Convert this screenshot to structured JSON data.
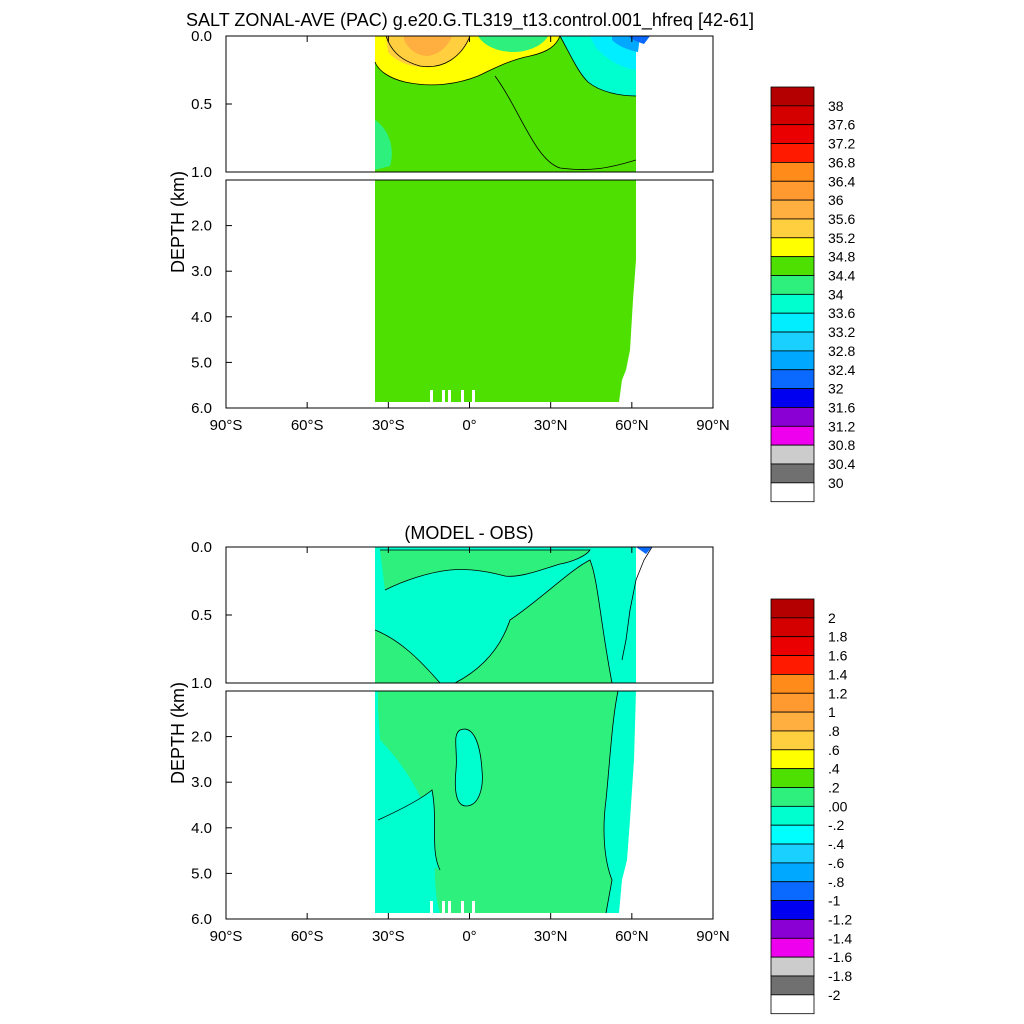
{
  "title": "SALT ZONAL-AVE (PAC) g.e20.G.TL319_t13.control.001_hfreq [42-61]",
  "chart_data": [
    {
      "type": "heatmap",
      "name": "model-salinity",
      "title": "SALT ZONAL-AVE (PAC) g.e20.G.TL319_t13.control.001_hfreq [42-61]",
      "ylabel": "DEPTH (km)",
      "x_range": [
        -90,
        90
      ],
      "x_ticks": [
        -90,
        -60,
        -30,
        0,
        30,
        60,
        90
      ],
      "x_tick_labels": [
        "90°S",
        "60°S",
        "30°S",
        "0°",
        "30°N",
        "60°N",
        "90°N"
      ],
      "upper_depth_range": [
        0.0,
        1.0
      ],
      "lower_depth_range": [
        1.0,
        6.0
      ],
      "upper_tick_values": [
        0.0,
        0.5,
        1.0
      ],
      "upper_tick_labels": [
        "0.0",
        "0.5",
        "1.0"
      ],
      "lower_tick_values": [
        2.0,
        3.0,
        4.0,
        5.0,
        6.0
      ],
      "lower_tick_labels": [
        "2.0",
        "3.0",
        "4.0",
        "5.0",
        "6.0"
      ],
      "colorbar_labels": [
        "38",
        "37.6",
        "37.2",
        "36.8",
        "36.4",
        "36",
        "35.6",
        "35.2",
        "34.8",
        "34.4",
        "34",
        "33.6",
        "33.2",
        "32.8",
        "32.4",
        "32",
        "31.6",
        "31.2",
        "30.8",
        "30.4",
        "30"
      ],
      "colorbar_colors": [
        "#b40000",
        "#d40000",
        "#ea0000",
        "#ff1a00",
        "#ff8c1a",
        "#ff9a30",
        "#ffae40",
        "#ffcf40",
        "#ffff00",
        "#4de000",
        "#2ef07c",
        "#00ffcf",
        "#00eeff",
        "#1ad0ff",
        "#00a8ff",
        "#0a6aff",
        "#0000f0",
        "#8a00d4",
        "#ee00ee",
        "#cccccc",
        "#707070",
        "#ffffff"
      ]
    },
    {
      "type": "heatmap",
      "name": "model-minus-obs",
      "title": "(MODEL - OBS)",
      "ylabel": "DEPTH (km)",
      "x_range": [
        -90,
        90
      ],
      "x_ticks": [
        -90,
        -60,
        -30,
        0,
        30,
        60,
        90
      ],
      "x_tick_labels": [
        "90°S",
        "60°S",
        "30°S",
        "0°",
        "30°N",
        "60°N",
        "90°N"
      ],
      "upper_depth_range": [
        0.0,
        1.0
      ],
      "lower_depth_range": [
        1.0,
        6.0
      ],
      "upper_tick_values": [
        0.0,
        0.5,
        1.0
      ],
      "upper_tick_labels": [
        "0.0",
        "0.5",
        "1.0"
      ],
      "lower_tick_values": [
        2.0,
        3.0,
        4.0,
        5.0,
        6.0
      ],
      "lower_tick_labels": [
        "2.0",
        "3.0",
        "4.0",
        "5.0",
        "6.0"
      ],
      "colorbar_labels": [
        "2",
        "1.8",
        "1.6",
        "1.4",
        "1.2",
        "1",
        ".8",
        ".6",
        ".4",
        ".2",
        ".00",
        "-.2",
        "-.4",
        "-.6",
        "-.8",
        "-1",
        "-1.2",
        "-1.4",
        "-1.6",
        "-1.8",
        "-2"
      ],
      "colorbar_colors": [
        "#b40000",
        "#d40000",
        "#ea0000",
        "#ff1a00",
        "#ff8c1a",
        "#ff9a30",
        "#ffae40",
        "#ffcf40",
        "#ffff00",
        "#4de000",
        "#2ef07c",
        "#00ffcf",
        "#00ffff",
        "#1ad0ff",
        "#00a8ff",
        "#0a6aff",
        "#0000f0",
        "#8a00d4",
        "#ee00ee",
        "#cccccc",
        "#707070",
        "#ffffff"
      ]
    }
  ]
}
